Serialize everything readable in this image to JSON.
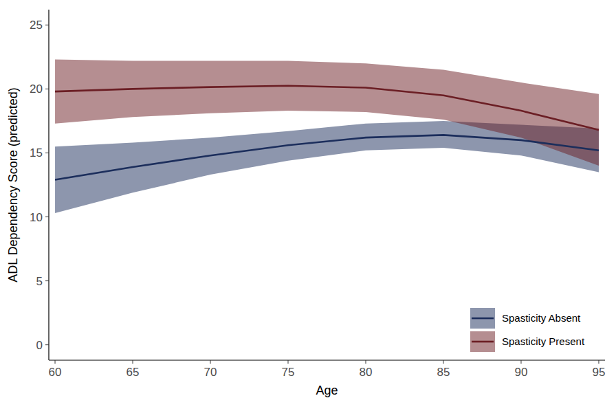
{
  "chart_data": {
    "type": "line",
    "x_label": "Age",
    "y_label": "ADL Dependency Score (predicted)",
    "x": [
      60,
      65,
      70,
      75,
      80,
      85,
      90,
      95
    ],
    "series": [
      {
        "name": "Spasticity Absent",
        "color": "#1c2e5c",
        "values": [
          12.9,
          13.9,
          14.8,
          15.6,
          16.2,
          16.4,
          16.0,
          15.2
        ],
        "lower": [
          10.3,
          11.9,
          13.3,
          14.4,
          15.2,
          15.4,
          14.8,
          13.5
        ],
        "upper": [
          15.5,
          15.8,
          16.2,
          16.7,
          17.3,
          17.5,
          17.2,
          16.9
        ]
      },
      {
        "name": "Spasticity Present",
        "color": "#6b1e24",
        "values": [
          19.8,
          20.0,
          20.15,
          20.25,
          20.1,
          19.5,
          18.3,
          16.8
        ],
        "lower": [
          17.3,
          17.8,
          18.1,
          18.3,
          18.2,
          17.6,
          16.2,
          14.0
        ],
        "upper": [
          22.3,
          22.2,
          22.2,
          22.2,
          22.0,
          21.5,
          20.5,
          19.6
        ]
      }
    ],
    "xlim": [
      59.6,
      95.4
    ],
    "ylim": [
      -1.2,
      26.2
    ],
    "xticks": [
      60,
      65,
      70,
      75,
      80,
      85,
      90,
      95
    ],
    "yticks": [
      0,
      5,
      10,
      15,
      20,
      25
    ],
    "grid": false,
    "legend": "bottom right"
  }
}
